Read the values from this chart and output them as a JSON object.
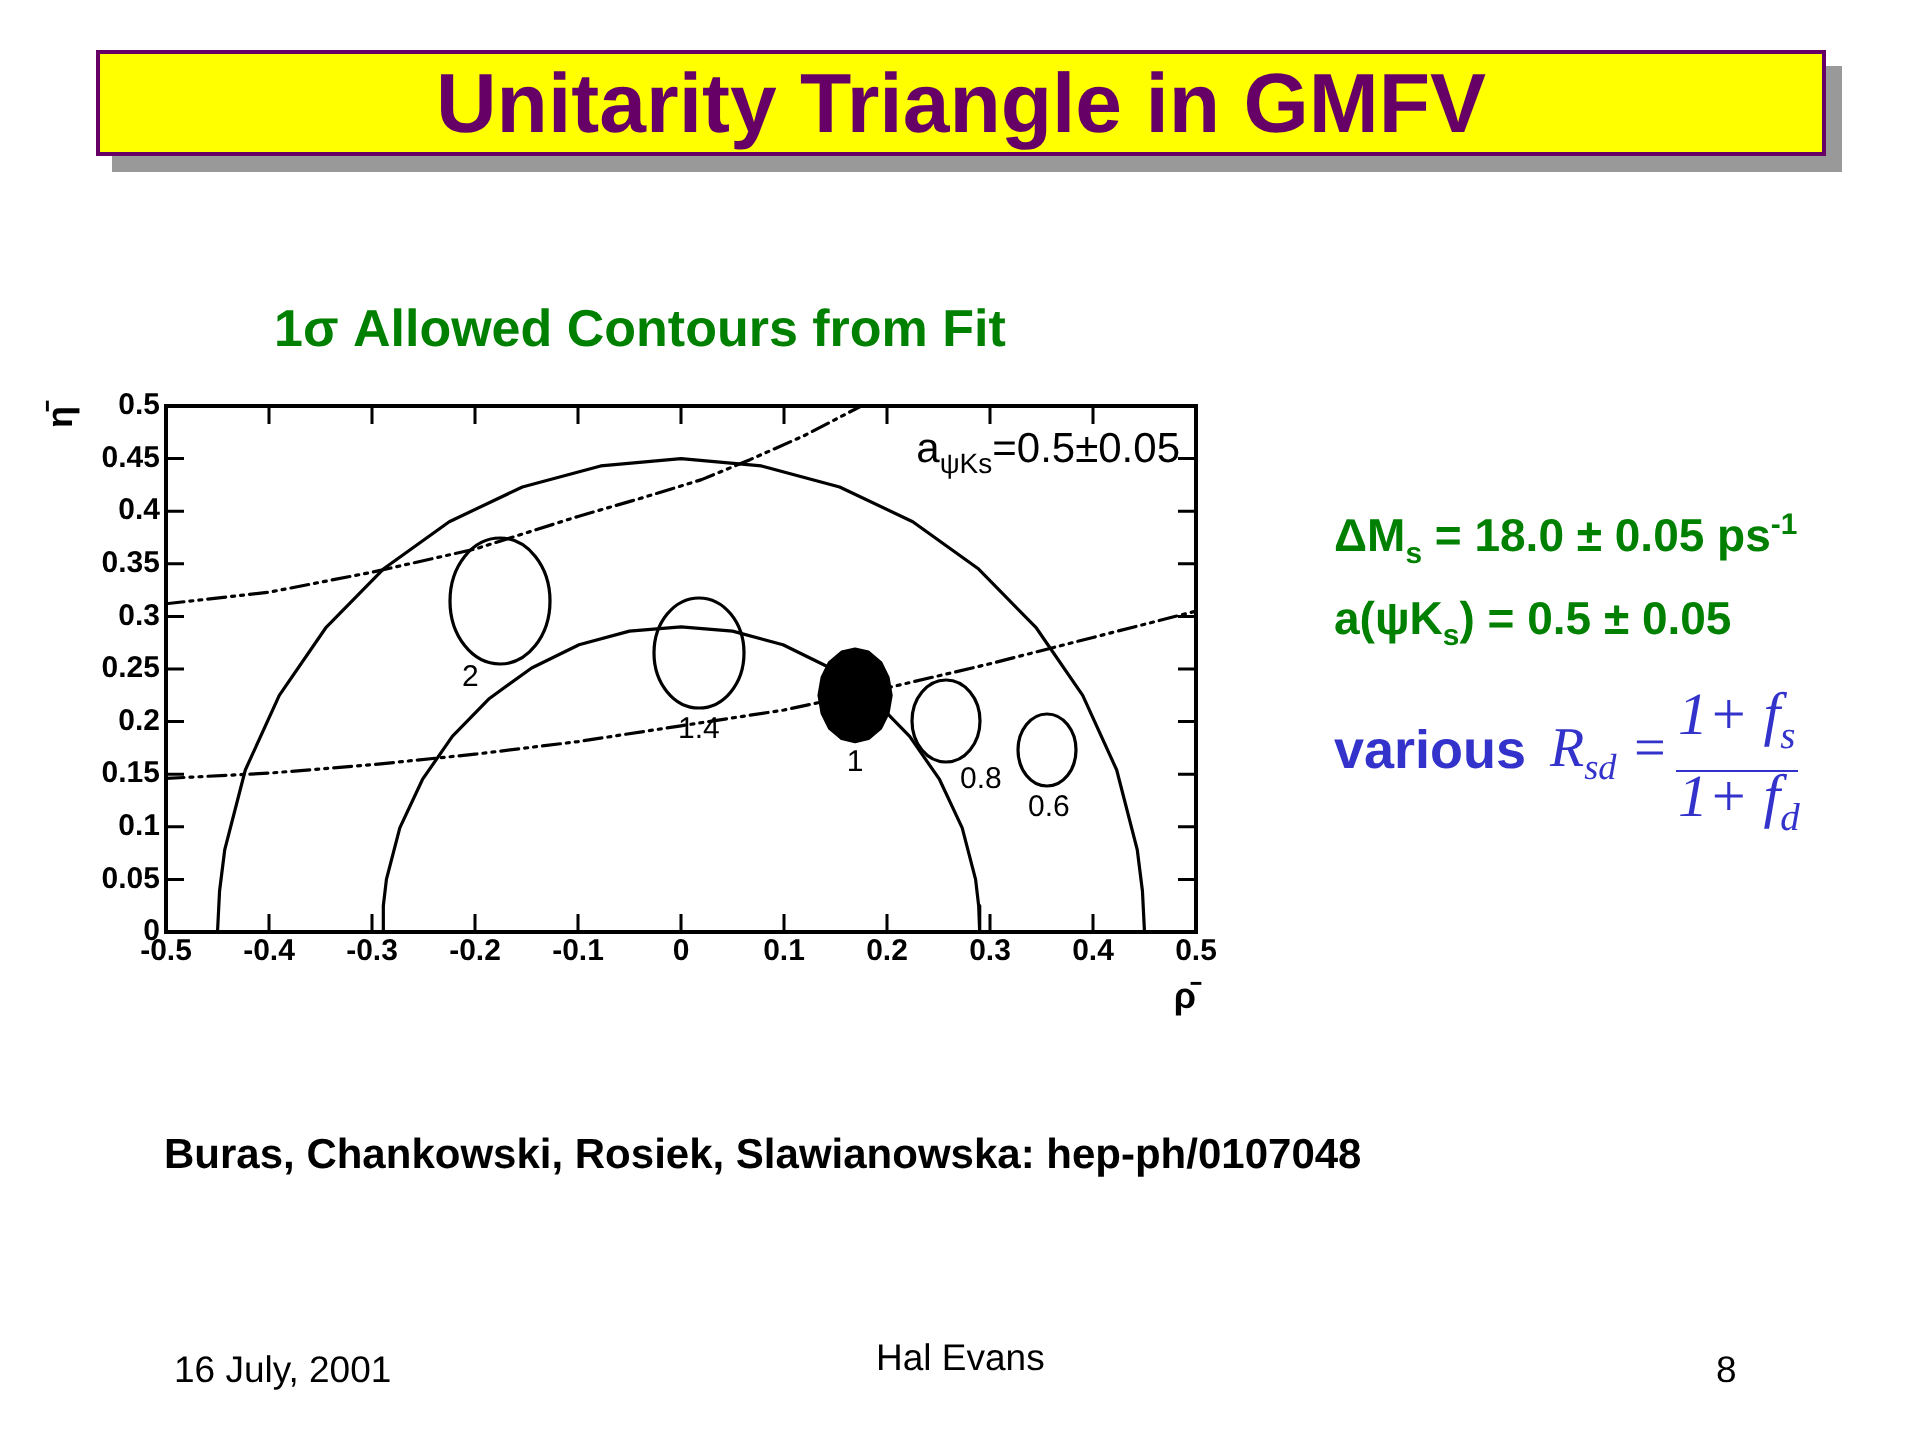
{
  "chart_data": {
    "type": "line",
    "title": "Unitarity Triangle in GMFV",
    "subtitle": "1σ Allowed Contours from Fit",
    "xlabel": "ρ̄",
    "ylabel": "η̄",
    "xlim": [
      -0.5,
      0.5
    ],
    "xticks": [
      -0.5,
      -0.4,
      -0.3,
      -0.2,
      -0.1,
      0,
      0.1,
      0.2,
      0.3,
      0.4,
      0.5
    ],
    "ylim": [
      0,
      0.5
    ],
    "yticks": [
      0,
      0.05,
      0.1,
      0.15,
      0.2,
      0.25,
      0.3,
      0.35,
      0.4,
      0.45,
      0.5
    ],
    "series": [
      {
        "color": "#000000",
        "x": [
          -0.45,
          -0.448,
          -0.443,
          -0.423,
          -0.39,
          -0.345,
          -0.289,
          -0.225,
          -0.154,
          -0.078,
          0,
          0.078,
          0.154,
          0.225,
          0.289,
          0.345,
          0.39,
          0.423,
          0.443,
          0.448,
          0.45
        ],
        "values": [
          0,
          0.039,
          0.078,
          0.154,
          0.225,
          0.289,
          0.345,
          0.39,
          0.423,
          0.443,
          0.45,
          0.443,
          0.423,
          0.39,
          0.345,
          0.289,
          0.225,
          0.154,
          0.078,
          0.039,
          0
        ]
      },
      {
        "color": "#000000",
        "x": [
          -0.29,
          -0.289,
          -0.286,
          -0.273,
          -0.251,
          -0.222,
          -0.186,
          -0.145,
          -0.099,
          -0.05,
          0,
          0.05,
          0.099,
          0.145,
          0.186,
          0.222,
          0.251,
          0.273,
          0.286,
          0.289,
          0.29
        ],
        "values": [
          0,
          0.025,
          0.05,
          0.099,
          0.145,
          0.186,
          0.222,
          0.251,
          0.273,
          0.286,
          0.29,
          0.286,
          0.273,
          0.251,
          0.222,
          0.186,
          0.145,
          0.099,
          0.05,
          0.025,
          0
        ]
      },
      {
        "color": "#000000",
        "line_style": "dashed",
        "x": [
          -0.5,
          -0.4,
          -0.3,
          -0.2,
          -0.1,
          -0.04,
          0.02,
          0.067,
          0.12,
          0.175
        ],
        "values": [
          0.312,
          0.323,
          0.342,
          0.364,
          0.395,
          0.412,
          0.43,
          0.449,
          0.472,
          0.5
        ]
      },
      {
        "color": "#000000",
        "line_style": "dashed",
        "x": [
          -0.5,
          -0.4,
          -0.3,
          -0.2,
          -0.1,
          0,
          0.1,
          0.2,
          0.3,
          0.4,
          0.5
        ],
        "values": [
          0.146,
          0.151,
          0.159,
          0.169,
          0.181,
          0.196,
          0.211,
          0.232,
          0.255,
          0.28,
          0.305
        ]
      },
      {
        "name": "1",
        "type": "area",
        "color": "#000000",
        "x": [
          0.204,
          0.201,
          0.194,
          0.182,
          0.169,
          0.156,
          0.144,
          0.137,
          0.134,
          0.137,
          0.144,
          0.156,
          0.169,
          0.182,
          0.194,
          0.201,
          0.204
        ],
        "values": [
          0.225,
          0.242,
          0.256,
          0.266,
          0.269,
          0.266,
          0.256,
          0.242,
          0.225,
          0.208,
          0.194,
          0.184,
          0.181,
          0.184,
          0.194,
          0.208,
          0.225
        ]
      }
    ],
    "annotations": [
      "a$_{ψKs}$=0.5±0.05",
      "2",
      "1.4",
      "0.8",
      "0.6",
      "ΔM$_{s}$ = 18.0 ± 0.05 ps$^{-1}$",
      "a(ψK$_{s}$) = 0.5 ± 0.05",
      "various",
      "R$_{sd}$ =",
      "1+ f$_{s}$",
      "1+ f$_{d}$",
      "Buras, Chankowski, Rosiek, Slawianowska: hep-ph/0107048",
      "16 July, 2001",
      "Hal Evans",
      "8"
    ]
  }
}
